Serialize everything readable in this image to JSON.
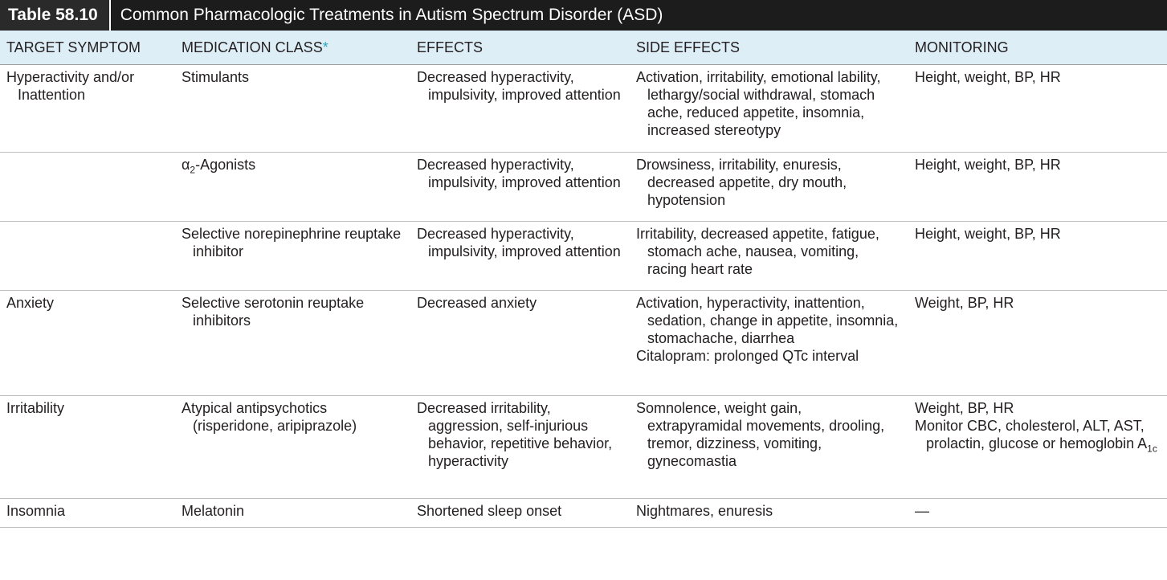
{
  "title": {
    "number": "Table 58.10",
    "caption": "Common Pharmacologic Treatments in Autism Spectrum Disorder (ASD)"
  },
  "headers": [
    "TARGET SYMPTOM",
    "MEDICATION CLASS",
    "EFFECTS",
    "SIDE EFFECTS",
    "MONITORING"
  ],
  "header_footnote_mark": "*",
  "rows": [
    {
      "target": "Hyperactivity and/or Inattention",
      "med_class": "Stimulants",
      "effects": "Decreased hyperactivity, impulsivity, improved attention",
      "side_effects": "Activation, irritability, emotional lability, lethargy/social withdrawal, stomach ache, reduced appetite, insomnia, increased stereotypy",
      "monitoring": "Height, weight, BP, HR"
    },
    {
      "target": "",
      "med_class_prefix": "α",
      "med_class_sub": "2",
      "med_class_suffix": "-Agonists",
      "effects": "Decreased hyperactivity, impulsivity, improved attention",
      "side_effects": "Drowsiness, irritability, enuresis, decreased appetite, dry mouth, hypotension",
      "monitoring": "Height, weight, BP, HR"
    },
    {
      "target": "",
      "med_class": "Selective norepinephrine reuptake inhibitor",
      "effects": "Decreased hyperactivity, impulsivity, improved attention",
      "side_effects": "Irritability, decreased appetite, fatigue, stomach ache, nausea, vomiting, racing heart rate",
      "monitoring": "Height, weight, BP, HR"
    },
    {
      "target": "Anxiety",
      "med_class": "Selective serotonin reuptake inhibitors",
      "effects": "Decreased anxiety",
      "side_effects": "Activation, hyperactivity, inattention, sedation, change in appetite, insomnia, stomachache, diarrhea",
      "side_effects_2": "Citalopram: prolonged QTc interval",
      "monitoring": "Weight, BP, HR"
    },
    {
      "target": "Irritability",
      "med_class": "Atypical antipsychotics (risperidone, aripiprazole)",
      "effects": "Decreased irritability, aggression, self-injurious behavior, repetitive behavior, hyperactivity",
      "side_effects": "Somnolence, weight gain, extrapyramidal movements, drooling, tremor, dizziness, vomiting, gynecomastia",
      "monitoring": "Weight, BP, HR",
      "monitoring_2": "Monitor CBC, cholesterol, ALT, AST, prolactin, glucose or hemoglobin A",
      "monitoring_2_sub": "1c"
    },
    {
      "target": "Insomnia",
      "med_class": "Melatonin",
      "effects": "Shortened sleep onset",
      "side_effects": "Nightmares, enuresis",
      "monitoring": "—"
    }
  ]
}
